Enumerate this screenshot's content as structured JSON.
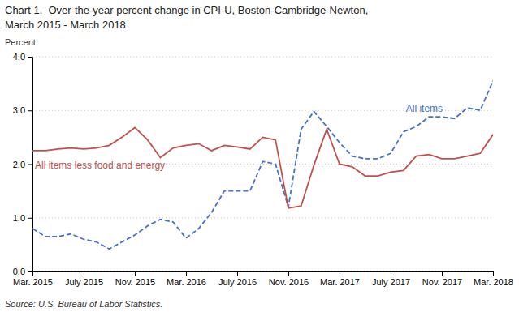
{
  "chart_data": {
    "type": "line",
    "title": "Chart 1.  Over-the-year percent change in CPI-U, Boston-Cambridge-Newton,",
    "subtitle": "March 2015 - March 2018",
    "y_label": "Percent",
    "source": "Source: U.S. Bureau of Labor Statistics.",
    "categories": [
      "Mar. 2015",
      null,
      null,
      null,
      "July 2015",
      null,
      null,
      null,
      "Nov. 2015",
      null,
      null,
      null,
      "Mar. 2016",
      null,
      null,
      null,
      "July 2016",
      null,
      null,
      null,
      "Nov. 2016",
      null,
      null,
      null,
      "Mar. 2017",
      null,
      null,
      null,
      "July 2017",
      null,
      null,
      null,
      "Nov. 2017",
      null,
      null,
      null,
      "Mar. 2018"
    ],
    "ylim": [
      0.0,
      4.0
    ],
    "yticks": [
      {
        "value": 0.0,
        "label": "0.0"
      },
      {
        "value": 1.0,
        "label": "1.0"
      },
      {
        "value": 2.0,
        "label": "2.0"
      },
      {
        "value": 3.0,
        "label": "3.0"
      },
      {
        "value": 4.0,
        "label": "4.0"
      }
    ],
    "grid": true,
    "series": [
      {
        "name": "All items",
        "color": "#4472C4",
        "line_style": "dashed",
        "values": [
          0.8,
          0.65,
          0.65,
          0.7,
          0.6,
          0.55,
          0.42,
          0.55,
          0.68,
          0.85,
          0.97,
          0.92,
          0.62,
          0.8,
          1.1,
          1.5,
          1.5,
          1.5,
          2.05,
          2.0,
          1.2,
          2.65,
          2.98,
          2.7,
          2.4,
          2.15,
          2.1,
          2.1,
          2.2,
          2.6,
          2.7,
          2.88,
          2.88,
          2.85,
          3.05,
          3.0,
          3.55
        ]
      },
      {
        "name": "All items less food and energy",
        "color": "#C0504D",
        "line_style": "solid",
        "values": [
          2.25,
          2.25,
          2.28,
          2.3,
          2.28,
          2.3,
          2.35,
          2.5,
          2.68,
          2.45,
          2.12,
          2.3,
          2.35,
          2.38,
          2.25,
          2.35,
          2.32,
          2.28,
          2.5,
          2.45,
          1.18,
          1.22,
          1.98,
          2.65,
          2.0,
          1.95,
          1.78,
          1.78,
          1.85,
          1.88,
          2.15,
          2.18,
          2.1,
          2.1,
          2.15,
          2.2,
          2.55
        ]
      }
    ]
  }
}
